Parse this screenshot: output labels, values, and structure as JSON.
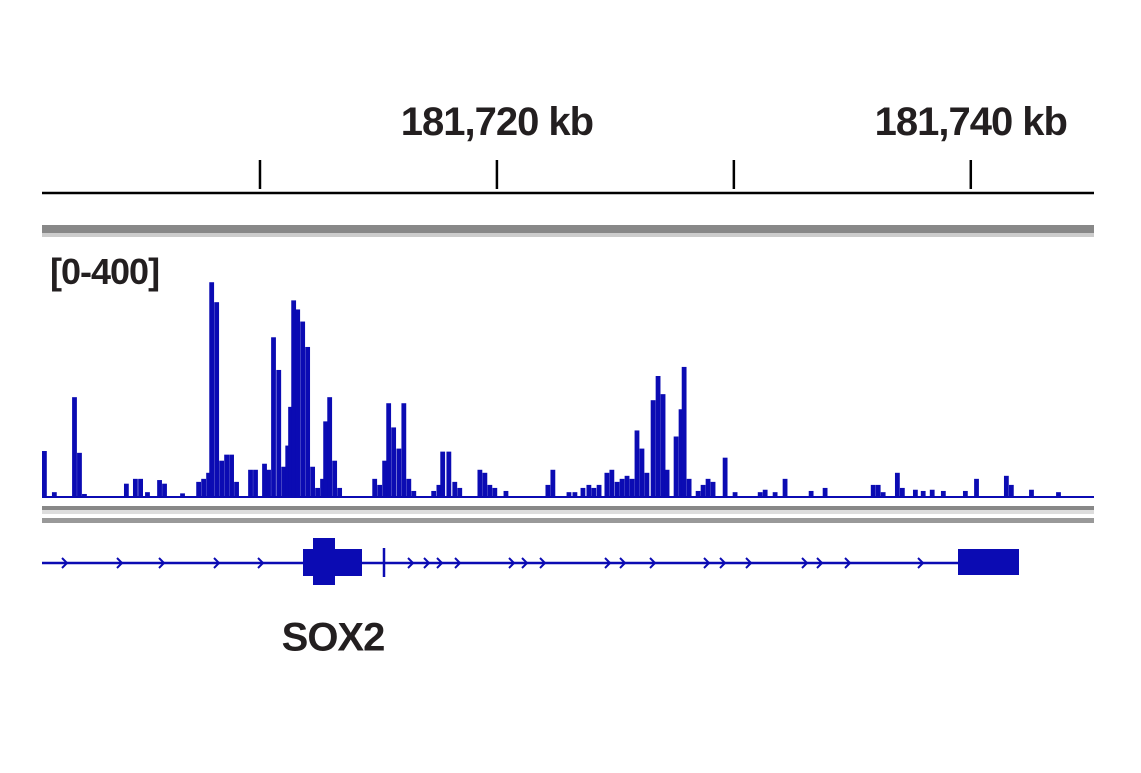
{
  "chart_data": {
    "type": "coverage",
    "track_label": "[0-400]",
    "gene_label": "SOX2",
    "color": "#0b0bb3",
    "xlim": [
      181700.8,
      181745.2
    ],
    "xticks": [
      {
        "value": 181710,
        "label": null
      },
      {
        "value": 181720,
        "label": "181,720 kb"
      },
      {
        "value": 181730,
        "label": null
      },
      {
        "value": 181740,
        "label": "181,740 kb"
      }
    ],
    "ylim": [
      0,
      400
    ],
    "x": [
      181700.8,
      181701.22,
      181702.07,
      181702.28,
      181702.49,
      181704.26,
      181704.64,
      181704.86,
      181705.15,
      181705.66,
      181705.87,
      181706.63,
      181707.31,
      181707.52,
      181707.73,
      181707.86,
      181708.07,
      181708.28,
      181708.49,
      181708.7,
      181708.91,
      181709.5,
      181709.71,
      181710.09,
      181710.26,
      181710.47,
      181710.69,
      181710.9,
      181711.07,
      181711.19,
      181711.32,
      181711.49,
      181711.7,
      181711.91,
      181712.12,
      181712.33,
      181712.54,
      181712.67,
      181712.84,
      181713.05,
      181713.26,
      181714.74,
      181714.95,
      181715.16,
      181715.33,
      181715.54,
      181715.76,
      181715.97,
      181716.18,
      181716.39,
      181717.23,
      181717.45,
      181717.61,
      181717.87,
      181718.12,
      181718.33,
      181719.18,
      181719.39,
      181719.6,
      181719.81,
      181720.28,
      181722.05,
      181722.26,
      181722.94,
      181723.19,
      181723.53,
      181723.78,
      181723.99,
      181724.21,
      181724.54,
      181724.75,
      181724.97,
      181725.18,
      181725.39,
      181725.6,
      181725.81,
      181726.02,
      181726.23,
      181726.49,
      181726.7,
      181726.91,
      181727.08,
      181727.46,
      181727.67,
      181727.8,
      181728.01,
      181728.39,
      181728.6,
      181728.81,
      181729.02,
      181729.53,
      181729.95,
      181731.01,
      181731.22,
      181731.64,
      181732.06,
      181733.16,
      181733.75,
      181735.78,
      181735.99,
      181736.2,
      181736.8,
      181737.01,
      181737.56,
      181737.89,
      181738.27,
      181738.74,
      181739.67,
      181740.14,
      181741.4,
      181741.61,
      181742.46,
      181743.6
    ],
    "values": [
      76,
      8,
      165,
      73,
      5,
      22,
      30,
      30,
      8,
      28,
      22,
      6,
      25,
      30,
      40,
      355,
      322,
      60,
      70,
      70,
      25,
      45,
      45,
      55,
      45,
      264,
      210,
      50,
      85,
      149,
      325,
      310,
      290,
      248,
      50,
      15,
      30,
      125,
      165,
      60,
      15,
      30,
      20,
      60,
      155,
      115,
      80,
      155,
      30,
      10,
      10,
      20,
      75,
      75,
      25,
      15,
      45,
      40,
      20,
      15,
      10,
      20,
      45,
      8,
      8,
      15,
      20,
      15,
      20,
      40,
      45,
      25,
      30,
      35,
      30,
      110,
      80,
      40,
      160,
      200,
      170,
      45,
      100,
      145,
      215,
      30,
      10,
      20,
      30,
      25,
      65,
      8,
      8,
      12,
      8,
      30,
      10,
      15,
      20,
      20,
      8,
      40,
      15,
      12,
      10,
      12,
      10,
      10,
      30,
      35,
      20,
      12,
      8
    ]
  }
}
